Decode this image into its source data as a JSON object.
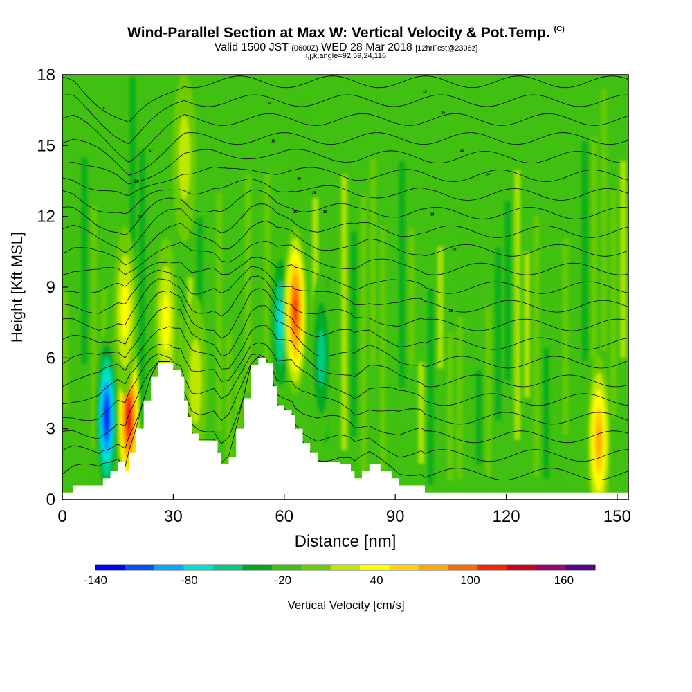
{
  "title": "Wind-Parallel Section at Max W: Vertical Velocity & Pot.Temp.",
  "copyright": "(C)",
  "subtitle_valid": "Valid 1500 JST",
  "subtitle_utc": "(0600Z)",
  "subtitle_date": "WED 28 Mar 2018",
  "subtitle_fcst": "[12hrFcst@2306z]",
  "subtitle_indices": "i,j,k,angle=92,59,24,116",
  "chart_data": {
    "type": "heatmap",
    "xlabel": "Distance [nm]",
    "ylabel": "Height [Kft MSL]",
    "xlim": [
      0,
      153
    ],
    "ylim": [
      0,
      18
    ],
    "x_ticks": [
      0,
      30,
      60,
      90,
      120,
      150
    ],
    "y_ticks": [
      0,
      3,
      6,
      9,
      12,
      15,
      18
    ],
    "colorbar": {
      "label": "Vertical Velocity [cm/s]",
      "tick_labels": [
        "-140",
        "-80",
        "-20",
        "40",
        "100",
        "160"
      ],
      "tick_values": [
        -140,
        -80,
        -20,
        40,
        100,
        160
      ],
      "bin_edges": [
        -140,
        -120,
        -100,
        -80,
        -60,
        -40,
        -20,
        0,
        20,
        40,
        60,
        80,
        100,
        120,
        140,
        160,
        180
      ],
      "colors": [
        "#0000ff",
        "#0050ff",
        "#00a8ff",
        "#00e0d0",
        "#00cc80",
        "#00aa20",
        "#40c010",
        "#6ccc00",
        "#bfe800",
        "#ffff00",
        "#ffd200",
        "#ffa500",
        "#ff6a00",
        "#ff2200",
        "#d00020",
        "#a00070",
        "#5a0090"
      ]
    },
    "background_value_range": [
      -20,
      20
    ],
    "terrain_kft": [
      [
        0,
        0.3
      ],
      [
        3,
        0.6
      ],
      [
        10,
        0.6
      ],
      [
        11,
        0.9
      ],
      [
        13,
        1.2
      ],
      [
        15,
        1.6
      ],
      [
        17,
        1.2
      ],
      [
        18,
        2.0
      ],
      [
        20,
        3.0
      ],
      [
        22,
        4.2
      ],
      [
        24,
        5.2
      ],
      [
        26,
        5.8
      ],
      [
        29,
        5.8
      ],
      [
        30,
        5.5
      ],
      [
        32,
        5.2
      ],
      [
        33,
        4.2
      ],
      [
        34,
        3.5
      ],
      [
        35,
        2.8
      ],
      [
        37,
        2.5
      ],
      [
        41,
        2.5
      ],
      [
        42,
        2.0
      ],
      [
        43,
        1.5
      ],
      [
        45,
        1.8
      ],
      [
        47,
        3.0
      ],
      [
        49,
        4.3
      ],
      [
        51,
        5.7
      ],
      [
        53,
        6.0
      ],
      [
        55,
        5.8
      ],
      [
        57,
        4.8
      ],
      [
        58,
        4.0
      ],
      [
        60,
        3.8
      ],
      [
        62,
        3.6
      ],
      [
        63,
        3.0
      ],
      [
        65,
        2.4
      ],
      [
        67,
        2.0
      ],
      [
        69,
        1.6
      ],
      [
        75,
        1.5
      ],
      [
        78,
        1.2
      ],
      [
        79,
        0.9
      ],
      [
        81,
        1.2
      ],
      [
        83,
        1.5
      ],
      [
        86,
        1.2
      ],
      [
        89,
        0.9
      ],
      [
        91,
        0.6
      ],
      [
        97,
        0.6
      ],
      [
        98,
        0.3
      ],
      [
        153,
        0.3
      ]
    ],
    "vertical_velocity_features": [
      {
        "x": 12,
        "z": 3.5,
        "value": -140
      },
      {
        "x": 18,
        "z": 3.5,
        "value": 160
      },
      {
        "x": 17,
        "z": 8.0,
        "value": 60
      },
      {
        "x": 28,
        "z": 7.5,
        "value": 50
      },
      {
        "x": 36,
        "z": 5.0,
        "value": 40
      },
      {
        "x": 59,
        "z": 7.5,
        "value": -80
      },
      {
        "x": 63,
        "z": 8.0,
        "value": 140
      },
      {
        "x": 70,
        "z": 6.0,
        "value": -60
      },
      {
        "x": 145,
        "z": 2.5,
        "value": 100
      },
      {
        "x": 33,
        "z": 14.5,
        "value": 40
      }
    ],
    "contour_labels": [
      "18",
      "17",
      "14",
      "19",
      "13",
      "16",
      "15",
      "24",
      "21",
      "12",
      "10",
      "20",
      "25",
      "30",
      "33",
      "22",
      "23"
    ]
  }
}
